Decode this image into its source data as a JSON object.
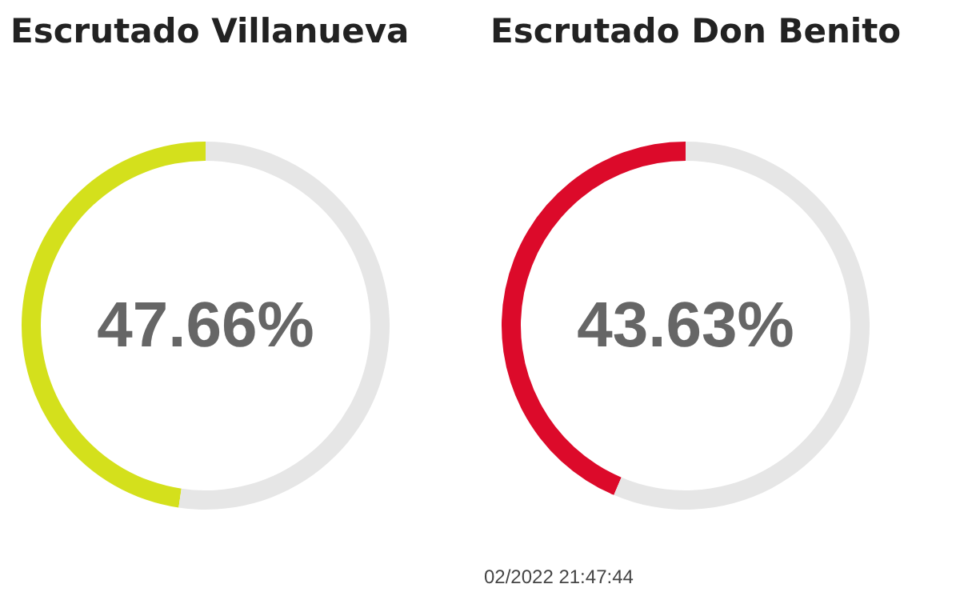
{
  "chart_data": [
    {
      "type": "donut",
      "title": "Escrutado Villanueva",
      "categories": [
        null,
        null
      ],
      "values": [
        47.66,
        52.34
      ],
      "colors": [
        "#d4e01c",
        "#e6e6e6"
      ],
      "value_labels": [
        "47.66%",
        null
      ]
    },
    {
      "type": "donut",
      "title": "Escrutado Don Benito",
      "categories": [
        null,
        null
      ],
      "values": [
        43.63,
        56.37
      ],
      "colors": [
        "#dc0a2a",
        "#e6e6e6"
      ],
      "value_labels": [
        "43.63%",
        null
      ],
      "annotations": [
        "02/2022 21:47:44"
      ]
    }
  ]
}
